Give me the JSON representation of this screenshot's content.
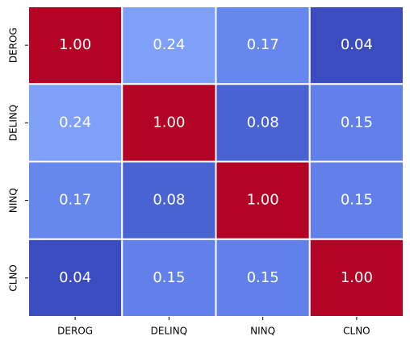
{
  "chart_data": {
    "type": "heatmap",
    "x_categories": [
      "DEROG",
      "DELINQ",
      "NINQ",
      "CLNO"
    ],
    "y_categories": [
      "DEROG",
      "DELINQ",
      "NINQ",
      "CLNO"
    ],
    "values": [
      [
        1.0,
        0.24,
        0.17,
        0.04
      ],
      [
        0.24,
        1.0,
        0.08,
        0.15
      ],
      [
        0.17,
        0.08,
        1.0,
        0.15
      ],
      [
        0.04,
        0.15,
        0.15,
        1.0
      ]
    ],
    "value_labels": [
      [
        "1.00",
        "0.24",
        "0.17",
        "0.04"
      ],
      [
        "0.24",
        "1.00",
        "0.08",
        "0.15"
      ],
      [
        "0.17",
        "0.08",
        "1.00",
        "0.15"
      ],
      [
        "0.04",
        "0.15",
        "0.15",
        "1.00"
      ]
    ],
    "colors": [
      [
        "#b40426",
        "#7fa0f9",
        "#6687ed",
        "#3b4cc0"
      ],
      [
        "#7fa0f9",
        "#b40426",
        "#4a63d3",
        "#6180e9"
      ],
      [
        "#6687ed",
        "#4a63d3",
        "#b40426",
        "#6180e9"
      ],
      [
        "#3b4cc0",
        "#6180e9",
        "#6180e9",
        "#b40426"
      ]
    ],
    "cell_border": "#ffffff"
  }
}
